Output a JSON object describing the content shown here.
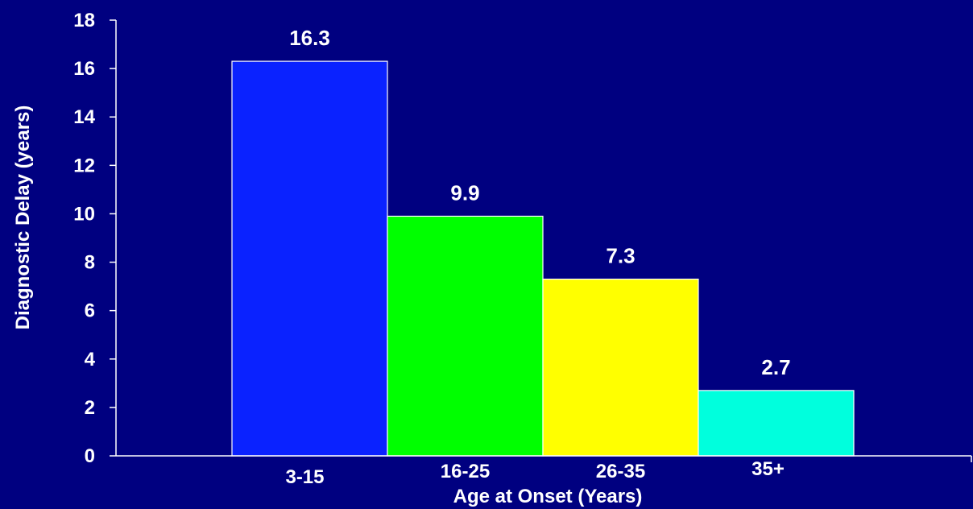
{
  "chart_data": {
    "type": "bar",
    "categories": [
      "3-15",
      "16-25",
      "26-35",
      "35+"
    ],
    "values": [
      16.3,
      9.9,
      7.3,
      2.7
    ],
    "data_labels": [
      "16.3",
      "9.9",
      "7.3",
      "2.7"
    ],
    "colors": [
      "#0a22ff",
      "#00ff00",
      "#ffff00",
      "#00ffdd"
    ],
    "xlabel": "Age at Onset (Years)",
    "ylabel": "Diagnostic Delay (years)",
    "ylim": [
      0,
      18
    ],
    "yticks": [
      0,
      2,
      4,
      6,
      8,
      10,
      12,
      14,
      16,
      18
    ],
    "grid": false,
    "legend": "none"
  }
}
